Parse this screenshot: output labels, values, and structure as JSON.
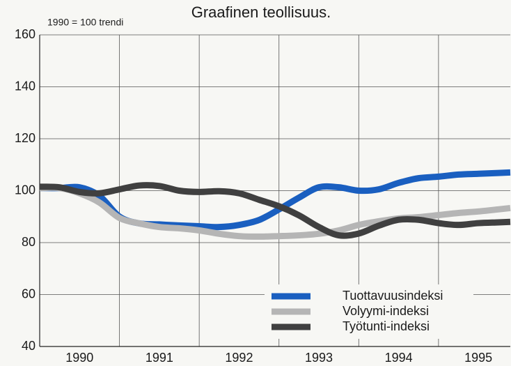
{
  "chart_data": {
    "type": "line",
    "title": "Graafinen teollisuus.",
    "subtitle": "1990 = 100 trendi",
    "x": [
      1990,
      1990.25,
      1990.5,
      1990.75,
      1991,
      1991.25,
      1991.5,
      1991.75,
      1992,
      1992.25,
      1992.5,
      1992.75,
      1993,
      1993.25,
      1993.5,
      1993.75,
      1994,
      1994.25,
      1994.5,
      1994.75,
      1995,
      1995.25,
      1995.5,
      1995.75,
      1995.9
    ],
    "series": [
      {
        "name": "Tuottavuusindeksi",
        "color": "#1a5fc0",
        "values": [
          101,
          101,
          101.3,
          98,
          90,
          87.4,
          87,
          86.6,
          86.3,
          86,
          86.8,
          88.7,
          92.8,
          97.3,
          101.3,
          101.3,
          100,
          100.5,
          103,
          104.8,
          105.4,
          106.2,
          106.5,
          106.8,
          107
        ]
      },
      {
        "name": "Volyymi-indeksi",
        "color": "#b5b5b5",
        "values": [
          101,
          101,
          99,
          95.4,
          89.5,
          87.4,
          86,
          85.5,
          84.7,
          83.4,
          82.5,
          82.3,
          82.5,
          82.8,
          83.4,
          84.7,
          86.8,
          88.2,
          89.3,
          89.8,
          90.6,
          91.4,
          92,
          92.8,
          93.3
        ]
      },
      {
        "name": "Työtunti-indeksi",
        "color": "#404040",
        "values": [
          101.5,
          101.3,
          99.5,
          99,
          100.5,
          102,
          101.8,
          100,
          99.5,
          99.8,
          99,
          96.5,
          94,
          90.5,
          86,
          82.8,
          83.5,
          86.5,
          88.8,
          88.8,
          87.5,
          86.8,
          87.5,
          87.8,
          88
        ]
      }
    ],
    "xlim": [
      1990,
      1995.9
    ],
    "xticks": [
      {
        "value": 1990.5,
        "label": "1990"
      },
      {
        "value": 1991.5,
        "label": "1991"
      },
      {
        "value": 1992.5,
        "label": "1992"
      },
      {
        "value": 1993.5,
        "label": "1993"
      },
      {
        "value": 1994.5,
        "label": "1994"
      },
      {
        "value": 1995.5,
        "label": "1995"
      }
    ],
    "xgrid": [
      1991,
      1992,
      1993,
      1994,
      1995
    ],
    "ylim": [
      40,
      160
    ],
    "yticks": [
      40,
      60,
      80,
      100,
      120,
      140,
      160
    ],
    "grid": true,
    "legend": "lower right"
  }
}
